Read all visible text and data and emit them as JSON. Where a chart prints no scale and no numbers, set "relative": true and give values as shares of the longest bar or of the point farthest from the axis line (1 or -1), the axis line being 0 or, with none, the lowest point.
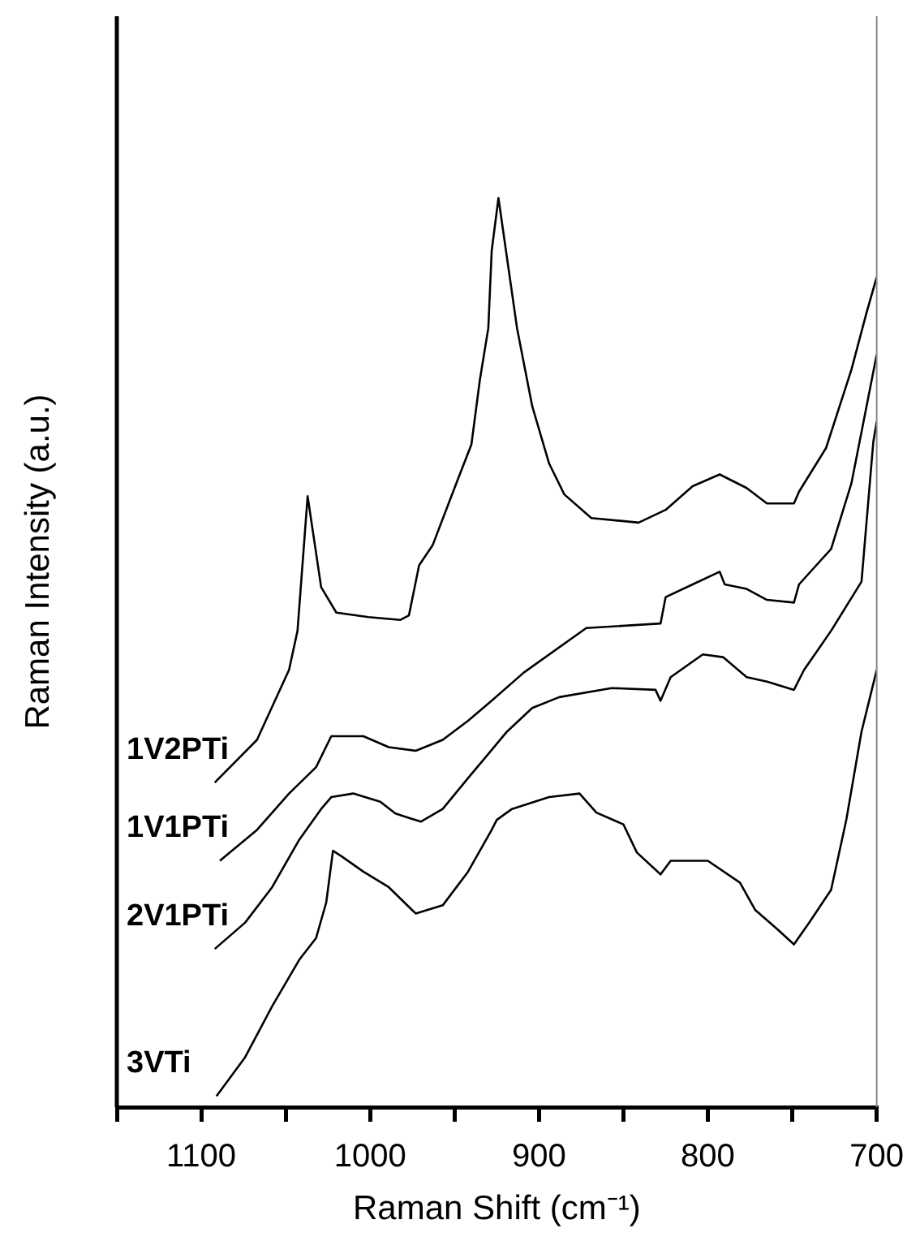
{
  "chart_data": {
    "type": "line",
    "relative": true,
    "xlabel": "Raman Shift (cm⁻¹)",
    "ylabel": "Raman Intensity (a.u.)",
    "xlim": [
      1150,
      700
    ],
    "xticks": [
      {
        "value": 1150,
        "label": null
      },
      1100,
      {
        "value": 1050,
        "label": null
      },
      1000,
      {
        "value": 950,
        "label": null
      },
      900,
      {
        "value": 850,
        "label": null
      },
      800,
      {
        "value": 750,
        "label": null
      },
      700
    ],
    "legend": false,
    "grid": false,
    "marker": "none",
    "line_style": "solid",
    "series": [
      {
        "name": "1V2PTi",
        "color": "#000000",
        "x": [
          1092,
          1067,
          1048,
          1043,
          1037,
          1029,
          1020,
          1001,
          982,
          977,
          971,
          963,
          949,
          940,
          935,
          930,
          928,
          924,
          913,
          904,
          894,
          885,
          869,
          841,
          825,
          809,
          793,
          777,
          765,
          749,
          746,
          730,
          715,
          706,
          700
        ],
        "values": [
          0.357,
          0.404,
          0.481,
          0.524,
          0.672,
          0.572,
          0.544,
          0.539,
          0.536,
          0.541,
          0.596,
          0.618,
          0.686,
          0.729,
          0.8,
          0.857,
          0.942,
          1.0,
          0.857,
          0.771,
          0.708,
          0.674,
          0.648,
          0.643,
          0.657,
          0.683,
          0.696,
          0.681,
          0.664,
          0.664,
          0.677,
          0.725,
          0.811,
          0.874,
          0.913
        ]
      },
      {
        "name": "1V1PTi",
        "color": "#000000",
        "x": [
          1089,
          1067,
          1048,
          1032,
          1023,
          1013,
          1004,
          989,
          973,
          957,
          942,
          928,
          909,
          872,
          828,
          825,
          809,
          793,
          790,
          777,
          765,
          749,
          746,
          727,
          715,
          706,
          700
        ],
        "values": [
          0.271,
          0.305,
          0.345,
          0.374,
          0.408,
          0.408,
          0.408,
          0.396,
          0.392,
          0.404,
          0.425,
          0.447,
          0.478,
          0.527,
          0.532,
          0.561,
          0.575,
          0.589,
          0.575,
          0.57,
          0.558,
          0.555,
          0.575,
          0.614,
          0.686,
          0.771,
          0.828
        ]
      },
      {
        "name": "2V1PTi",
        "color": "#000000",
        "x": [
          1092,
          1074,
          1058,
          1042,
          1029,
          1023,
          1010,
          994,
          985,
          970,
          957,
          942,
          932,
          919,
          904,
          888,
          857,
          831,
          828,
          822,
          803,
          791,
          777,
          765,
          749,
          743,
          727,
          709,
          702,
          700
        ],
        "values": [
          0.174,
          0.203,
          0.242,
          0.294,
          0.328,
          0.341,
          0.345,
          0.336,
          0.323,
          0.314,
          0.328,
          0.362,
          0.384,
          0.413,
          0.439,
          0.451,
          0.461,
          0.459,
          0.447,
          0.473,
          0.498,
          0.495,
          0.473,
          0.468,
          0.459,
          0.481,
          0.524,
          0.578,
          0.732,
          0.754
        ]
      },
      {
        "name": "3VTi",
        "color": "#000000",
        "x": [
          1091,
          1074,
          1058,
          1042,
          1032,
          1026,
          1022,
          1017,
          1004,
          989,
          973,
          957,
          942,
          928,
          925,
          916,
          894,
          876,
          866,
          850,
          842,
          828,
          822,
          800,
          781,
          772,
          759,
          749,
          740,
          727,
          718,
          709,
          700
        ],
        "values": [
          0.012,
          0.055,
          0.111,
          0.162,
          0.186,
          0.225,
          0.282,
          0.276,
          0.259,
          0.242,
          0.213,
          0.222,
          0.259,
          0.305,
          0.316,
          0.328,
          0.341,
          0.345,
          0.324,
          0.311,
          0.28,
          0.256,
          0.271,
          0.271,
          0.247,
          0.217,
          0.196,
          0.179,
          0.203,
          0.239,
          0.316,
          0.413,
          0.481
        ]
      }
    ]
  }
}
